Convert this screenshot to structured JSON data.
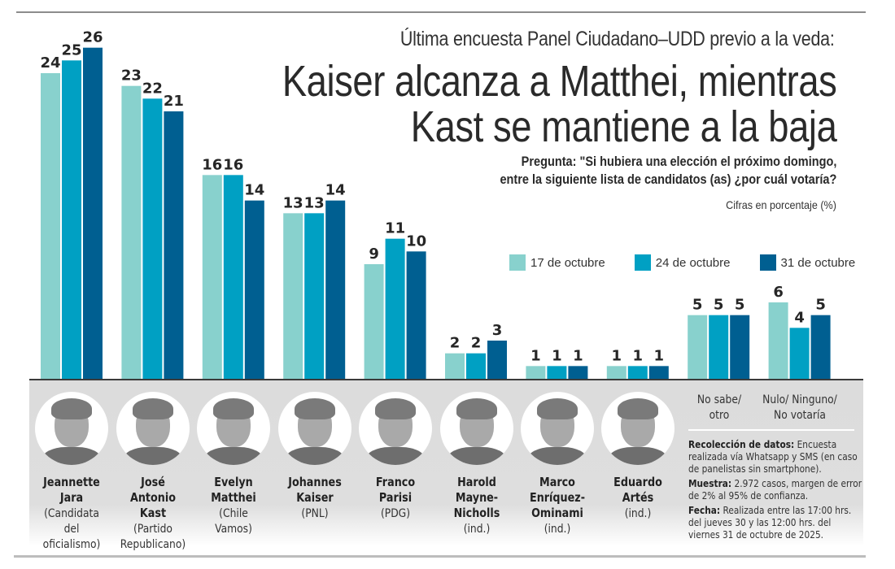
{
  "header": {
    "supertitle": "Última encuesta Panel Ciudadano–UDD previo a la veda:",
    "headline_line1": "Kaiser alcanza a Matthei, mientras",
    "headline_line2": "Kast se mantiene a la baja",
    "question_line1": "Pregunta: \"Si hubiera una elección el próximo domingo,",
    "question_line2": "entre la siguiente lista de candidatos (as) ¿por cuál votaría?",
    "units": "Cifras en porcentaje (%)"
  },
  "colors": {
    "series_17": "#88d1cd",
    "series_24": "#00a0c3",
    "series_31": "#005f91",
    "band": "#dcdcdc"
  },
  "chart_data": {
    "type": "bar",
    "title": "Kaiser alcanza a Matthei, mientras Kast se mantiene a la baja",
    "subtitle": "Última encuesta Panel Ciudadano–UDD previo a la veda",
    "xlabel": "",
    "ylabel": "Cifras en porcentaje (%)",
    "ylim": [
      0,
      26
    ],
    "grid": false,
    "legend_position": "top-right",
    "categories": [
      "Jeannette Jara",
      "José Antonio Kast",
      "Evelyn Matthei",
      "Johannes Kaiser",
      "Franco Parisi",
      "Harold Mayne-Nicholls",
      "Marco Enríquez-Ominami",
      "Eduardo Artés",
      "No sabe/ otro",
      "Nulo/ Ninguno/ No votaría"
    ],
    "series": [
      {
        "name": "17 de octubre",
        "color": "#88d1cd",
        "values": [
          24,
          23,
          16,
          13,
          9,
          2,
          1,
          1,
          5,
          6
        ]
      },
      {
        "name": "24 de octubre",
        "color": "#00a0c3",
        "values": [
          25,
          22,
          16,
          13,
          11,
          2,
          1,
          1,
          5,
          4
        ]
      },
      {
        "name": "31 de octubre",
        "color": "#005f91",
        "values": [
          26,
          21,
          14,
          14,
          10,
          3,
          1,
          1,
          5,
          5
        ]
      }
    ]
  },
  "legend": [
    {
      "label": "17 de octubre"
    },
    {
      "label": "24 de octubre"
    },
    {
      "label": "31 de octubre"
    }
  ],
  "candidates": [
    {
      "name": "Jeannette\nJara",
      "party": "(Candidata del\noficialismo)",
      "photo_icon": "portrait-photo"
    },
    {
      "name": "José Antonio\nKast",
      "party": "(Partido\nRepublicano)",
      "photo_icon": "portrait-photo"
    },
    {
      "name": "Evelyn\nMatthei",
      "party": "(Chile\nVamos)",
      "photo_icon": "portrait-photo"
    },
    {
      "name": "Johannes\nKaiser",
      "party": "(PNL)",
      "photo_icon": "portrait-photo"
    },
    {
      "name": "Franco\nParisi",
      "party": "(PDG)",
      "photo_icon": "portrait-photo"
    },
    {
      "name": "Harold\nMayne-\nNicholls",
      "party": "(ind.)",
      "photo_icon": "portrait-photo"
    },
    {
      "name": "Marco\nEnríquez-\nOminami",
      "party": "(ind.)",
      "photo_icon": "portrait-photo"
    },
    {
      "name": "Eduardo\nArtés",
      "party": "(ind.)",
      "photo_icon": "portrait-photo"
    }
  ],
  "other_categories": [
    {
      "label": "No sabe/\notro"
    },
    {
      "label": "Nulo/ Ninguno/\nNo votaría"
    }
  ],
  "notes": [
    {
      "label": "Recolección de datos:",
      "text": " Encuesta realizada vía Whatsapp y SMS (en caso de panelistas sin smartphone)."
    },
    {
      "label": "Muestra:",
      "text": " 2.972 casos, margen de error de 2% al 95% de confianza."
    },
    {
      "label": "Fecha:",
      "text": " Realizada entre las 17:00 hrs. del jueves 30 y las 12:00 hrs. del viernes 31 de octubre de 2025."
    }
  ]
}
